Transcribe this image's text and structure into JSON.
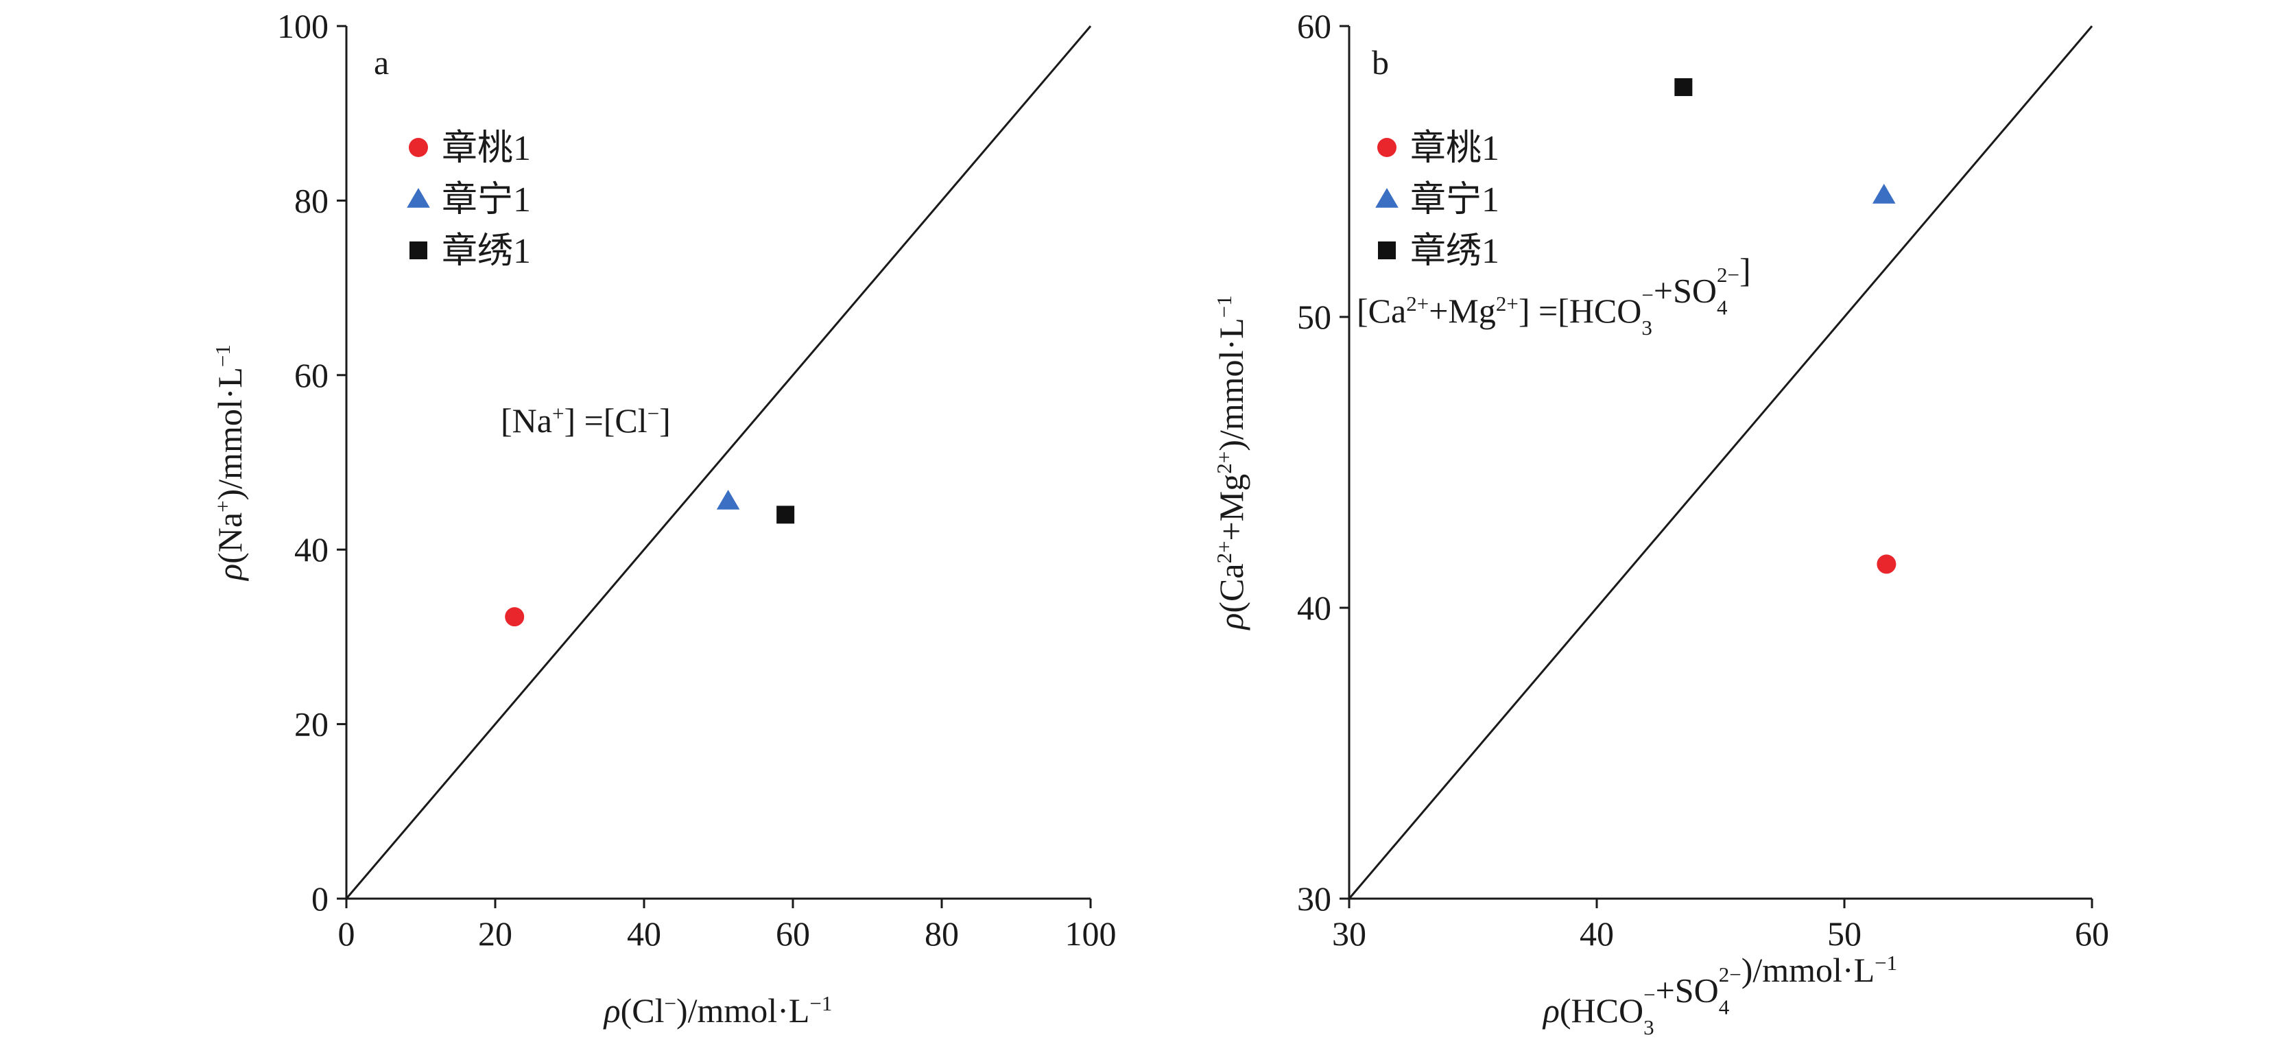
{
  "chart_data": [
    {
      "type": "scatter",
      "panel_label": "a",
      "xlabel_parts": [
        "ρ",
        "(Cl",
        "−",
        ")/mmol·L",
        "−1"
      ],
      "ylabel_parts": [
        "ρ",
        "(Na",
        "+",
        ")/mmol·L",
        "−1"
      ],
      "xlim": [
        0,
        100
      ],
      "ylim": [
        0,
        100
      ],
      "xticks": [
        "0",
        "20",
        "40",
        "60",
        "80",
        "100"
      ],
      "yticks": [
        "0",
        "20",
        "40",
        "60",
        "80",
        "100"
      ],
      "reference_line": {
        "from": [
          0,
          0
        ],
        "to": [
          100,
          100
        ]
      },
      "annotation_parts": [
        "[Na",
        "+",
        "] =[Cl",
        "−",
        "]"
      ],
      "legend_position": "top-left",
      "series": [
        {
          "name": "章桃1",
          "marker": "circle",
          "color": "#e8262b",
          "x": 22.6,
          "y": 32.3
        },
        {
          "name": "章宁1",
          "marker": "triangle",
          "color": "#3a6fc4",
          "x": 51.3,
          "y": 45.6
        },
        {
          "name": "章绣1",
          "marker": "square",
          "color": "#111111",
          "x": 59.0,
          "y": 44.0
        }
      ]
    },
    {
      "type": "scatter",
      "panel_label": "b",
      "xlabel_parts": [
        "ρ",
        "(HCO",
        "3",
        "−",
        "+SO",
        "4",
        "2−",
        ")/mmol·L",
        "−1"
      ],
      "ylabel_parts": [
        "ρ",
        "(Ca",
        "2+",
        "+Mg",
        "2+",
        ")/mmol·L",
        "−1"
      ],
      "xlim": [
        30,
        60
      ],
      "ylim": [
        30,
        60
      ],
      "xticks": [
        "30",
        "40",
        "50",
        "60"
      ],
      "yticks": [
        "30",
        "40",
        "50",
        "60"
      ],
      "reference_line": {
        "from": [
          30,
          30
        ],
        "to": [
          60,
          60
        ]
      },
      "annotation_parts": [
        "[Ca",
        "2+",
        "+Mg",
        "2+",
        "] =[HCO",
        "3",
        "−",
        "+SO",
        "4",
        "2−",
        "]"
      ],
      "legend_position": "top-left",
      "series": [
        {
          "name": "章桃1",
          "marker": "circle",
          "color": "#e8262b",
          "x": 51.7,
          "y": 41.5
        },
        {
          "name": "章宁1",
          "marker": "triangle",
          "color": "#3a6fc4",
          "x": 51.6,
          "y": 54.2
        },
        {
          "name": "章绣1",
          "marker": "square",
          "color": "#111111",
          "x": 43.5,
          "y": 57.9
        }
      ]
    }
  ]
}
